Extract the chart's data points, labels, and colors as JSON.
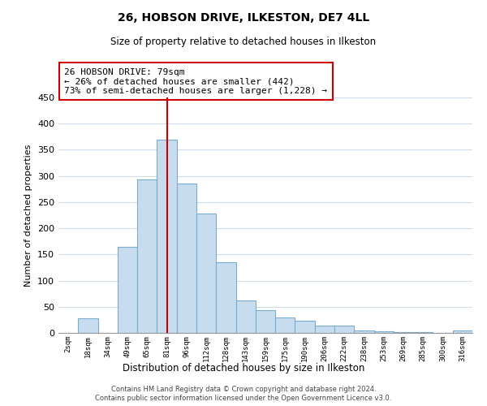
{
  "title": "26, HOBSON DRIVE, ILKESTON, DE7 4LL",
  "subtitle": "Size of property relative to detached houses in Ilkeston",
  "xlabel": "Distribution of detached houses by size in Ilkeston",
  "ylabel": "Number of detached properties",
  "bar_color": "#c8dcf0",
  "bar_edge_color": "#7aaccc",
  "categories": [
    "2sqm",
    "18sqm",
    "34sqm",
    "49sqm",
    "65sqm",
    "81sqm",
    "96sqm",
    "112sqm",
    "128sqm",
    "143sqm",
    "159sqm",
    "175sqm",
    "190sqm",
    "206sqm",
    "222sqm",
    "238sqm",
    "253sqm",
    "269sqm",
    "285sqm",
    "300sqm",
    "316sqm"
  ],
  "values": [
    0,
    28,
    0,
    165,
    293,
    370,
    285,
    228,
    135,
    62,
    43,
    30,
    23,
    14,
    14,
    5,
    3,
    2,
    1,
    0,
    5
  ],
  "ylim": [
    0,
    450
  ],
  "yticks": [
    0,
    50,
    100,
    150,
    200,
    250,
    300,
    350,
    400,
    450
  ],
  "vline_x_index": 5,
  "vline_color": "#cc0000",
  "annotation_title": "26 HOBSON DRIVE: 79sqm",
  "annotation_line1": "← 26% of detached houses are smaller (442)",
  "annotation_line2": "73% of semi-detached houses are larger (1,228) →",
  "annotation_box_color": "#ffffff",
  "annotation_box_edge": "#cc0000",
  "background_color": "#ffffff",
  "grid_color": "#d0dce8",
  "footer_line1": "Contains HM Land Registry data © Crown copyright and database right 2024.",
  "footer_line2": "Contains public sector information licensed under the Open Government Licence v3.0."
}
